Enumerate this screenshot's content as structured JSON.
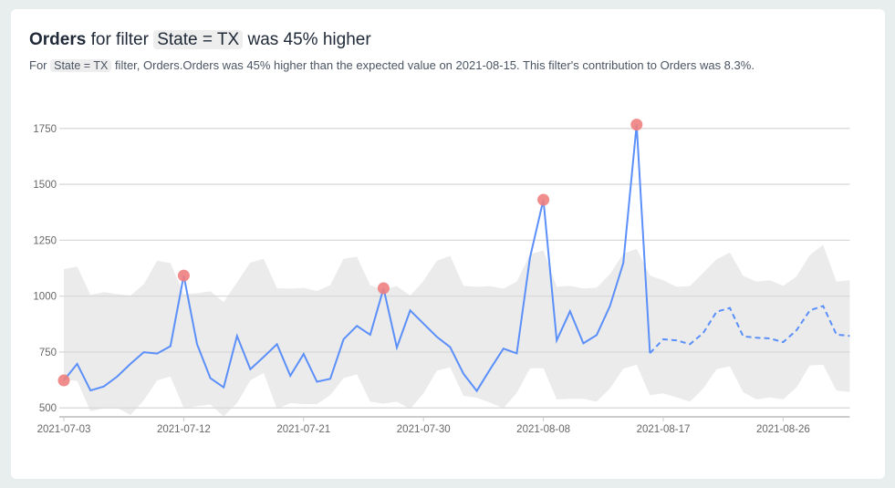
{
  "header": {
    "metric": "Orders",
    "for_filter": "for filter",
    "filter_chip": "State = TX",
    "headline_tail": "was 45% higher",
    "sub_prefix": "For",
    "sub_chip": "State = TX",
    "sub_tail": "filter, Orders.Orders was 45% higher than the expected value on 2021-08-15. This filter's contribution to Orders was 8.3%."
  },
  "chart_data": {
    "type": "line",
    "title": "",
    "xlabel": "",
    "ylabel": "",
    "ylim": [
      460,
      1790
    ],
    "grid": true,
    "y_ticks": [
      "500",
      "750",
      "1000",
      "1250",
      "1500",
      "1750"
    ],
    "x_ticks": [
      "2021-07-03",
      "2021-07-12",
      "2021-07-21",
      "2021-07-30",
      "2021-08-08",
      "2021-08-17",
      "2021-08-26"
    ],
    "colors": {
      "line": "#5b8ff9",
      "band": "#ebebeb",
      "anomaly": "#f08080",
      "grid": "#d9d9d9"
    },
    "start_date": "2021-07-03",
    "actual_end_index": 44,
    "values": [
      623,
      697,
      578,
      596,
      640,
      697,
      749,
      743,
      776,
      1092,
      785,
      633,
      592,
      822,
      673,
      728,
      785,
      644,
      741,
      617,
      630,
      807,
      867,
      827,
      1035,
      770,
      936,
      877,
      818,
      772,
      653,
      576,
      673,
      765,
      744,
      1174,
      1431,
      802,
      932,
      789,
      826,
      956,
      1148,
      1767,
      745,
      807,
      802,
      785,
      835,
      930,
      947,
      820,
      814,
      811,
      794,
      847,
      936,
      956,
      828,
      822
    ],
    "upper": [
      1121,
      1132,
      1005,
      1018,
      1009,
      1002,
      1053,
      1158,
      1148,
      1009,
      1013,
      1022,
      973,
      1062,
      1150,
      1167,
      1035,
      1033,
      1037,
      1023,
      1049,
      1167,
      1176,
      1049,
      1029,
      1045,
      1002,
      1068,
      1158,
      1180,
      1046,
      1042,
      1045,
      1033,
      1065,
      1187,
      1205,
      1042,
      1046,
      1034,
      1038,
      1099,
      1190,
      1211,
      1092,
      1071,
      1042,
      1045,
      1104,
      1165,
      1195,
      1091,
      1065,
      1071,
      1046,
      1088,
      1184,
      1229,
      1065,
      1071
    ],
    "lower": [
      627,
      620,
      485,
      499,
      501,
      468,
      534,
      623,
      640,
      499,
      508,
      515,
      462,
      521,
      623,
      657,
      495,
      521,
      517,
      517,
      557,
      633,
      650,
      528,
      519,
      528,
      495,
      565,
      666,
      682,
      554,
      545,
      524,
      499,
      567,
      677,
      678,
      538,
      541,
      541,
      528,
      587,
      675,
      693,
      557,
      565,
      547,
      528,
      587,
      673,
      686,
      570,
      538,
      547,
      538,
      591,
      690,
      693,
      578,
      571
    ],
    "anomaly_indices": [
      0,
      9,
      24,
      36,
      43
    ]
  }
}
